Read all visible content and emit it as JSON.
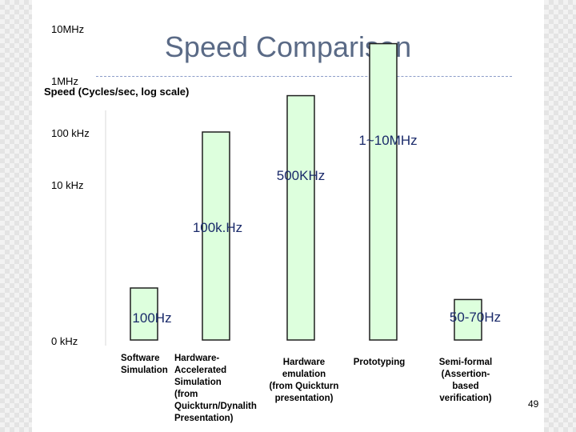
{
  "slide": {
    "title": "Speed Comparison",
    "subtitle": "Speed (Cycles/sec, log scale)",
    "page_number": "49"
  },
  "colors": {
    "bar_fill": "#ddffdd",
    "bar_stroke": "#1f1f1f",
    "title": "#5a6a86",
    "rule": "#8b9cc8"
  },
  "chart_data": {
    "type": "bar",
    "ylabel": "Speed (Cycles/sec, log scale)",
    "y_scale": "log",
    "y_ticks": [
      {
        "label": "10MHz",
        "value": 10000000
      },
      {
        "label": "1MHz",
        "value": 1000000
      },
      {
        "label": "100 kHz",
        "value": 100000
      },
      {
        "label": "10 kHz",
        "value": 10000
      },
      {
        "label": "0 kHz",
        "value": 0
      }
    ],
    "categories": [
      [
        "Software",
        "Simulation"
      ],
      [
        "Hardware-",
        "Accelerated",
        "Simulation",
        "(from",
        "Quickturn/Dynalith",
        "Presentation)"
      ],
      [
        "Hardware",
        "emulation",
        "(from Quickturn",
        "presentation)"
      ],
      [
        "Prototyping"
      ],
      [
        "Semi-formal",
        "(Assertion-",
        "based",
        "verification)"
      ]
    ],
    "values": [
      100,
      100000,
      500000,
      5000000,
      60
    ],
    "value_labels": [
      "100Hz",
      "100k.Hz",
      "500KHz",
      "1~10MHz",
      "50-70Hz"
    ],
    "grid": false,
    "legend": "none"
  }
}
